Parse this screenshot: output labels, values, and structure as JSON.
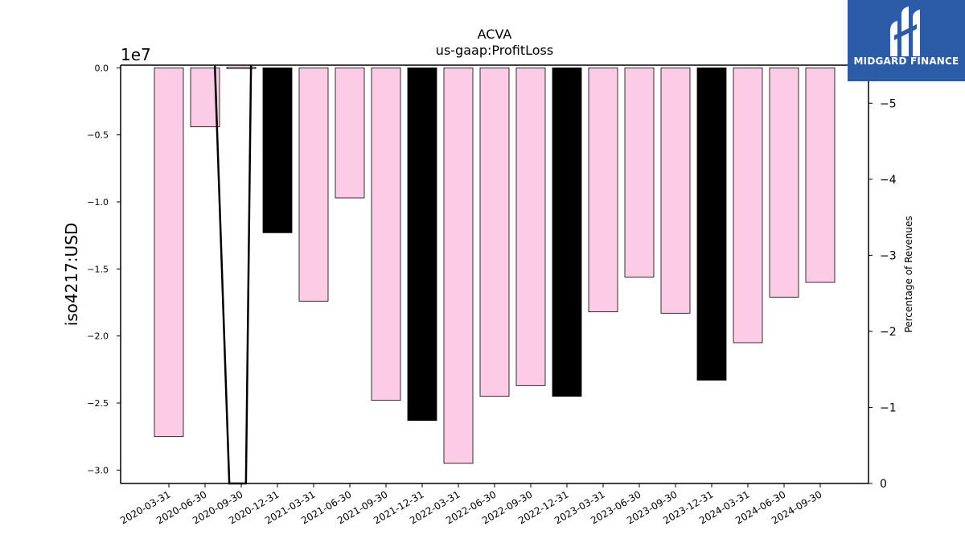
{
  "chart_data": {
    "type": "bar",
    "title": "ACVA",
    "subtitle": "us-gaap:ProfitLoss",
    "ylabel": "iso4217:USD",
    "y_offset_label": "1e7",
    "y2label": "Percentage of Revenues",
    "ylim": [
      -3.1,
      0.02
    ],
    "y2lim": [
      0,
      -5.5
    ],
    "yticks": [
      0.0,
      -0.5,
      -1.0,
      -1.5,
      -2.0,
      -2.5,
      -3.0
    ],
    "ytick_labels": [
      "0.0",
      "−0.5",
      "−1.0",
      "−1.5",
      "−2.0",
      "−2.5",
      "−3.0"
    ],
    "y2ticks": [
      0,
      -1,
      -2,
      -3,
      -4,
      -5
    ],
    "y2tick_labels": [
      "0",
      "−1",
      "−2",
      "−3",
      "−4",
      "−5"
    ],
    "categories": [
      "2020-03-31",
      "2020-06-30",
      "2020-09-30",
      "2020-12-31",
      "2021-03-31",
      "2021-06-30",
      "2021-09-30",
      "2021-12-31",
      "2022-03-31",
      "2022-06-30",
      "2022-09-30",
      "2022-12-31",
      "2023-03-31",
      "2023-06-30",
      "2023-09-30",
      "2023-12-31",
      "2024-03-31",
      "2024-06-30",
      "2024-09-30"
    ],
    "values": [
      -2.75,
      -0.44,
      0.0,
      -1.23,
      -1.74,
      -0.97,
      -2.48,
      -2.63,
      -2.95,
      -2.45,
      -2.37,
      -2.45,
      -1.82,
      -1.56,
      -1.83,
      -2.33,
      -2.05,
      -1.71,
      -1.6
    ],
    "bar_colors": [
      "#fccbe5",
      "#fccbe5",
      "#fccbe5",
      "#000000",
      "#fccbe5",
      "#fccbe5",
      "#fccbe5",
      "#000000",
      "#fccbe5",
      "#fccbe5",
      "#fccbe5",
      "#000000",
      "#fccbe5",
      "#fccbe5",
      "#fccbe5",
      "#000000",
      "#fccbe5",
      "#fccbe5",
      "#fccbe5"
    ],
    "line_series": {
      "axis": "y2",
      "x_index": [
        1.27,
        1.67,
        2.13,
        2.27
      ],
      "values": [
        -5.5,
        0,
        0,
        -5.5
      ]
    },
    "grid": false
  },
  "logo": {
    "text": "MIDGARD FINANCE",
    "background": "#2c5ba8"
  }
}
